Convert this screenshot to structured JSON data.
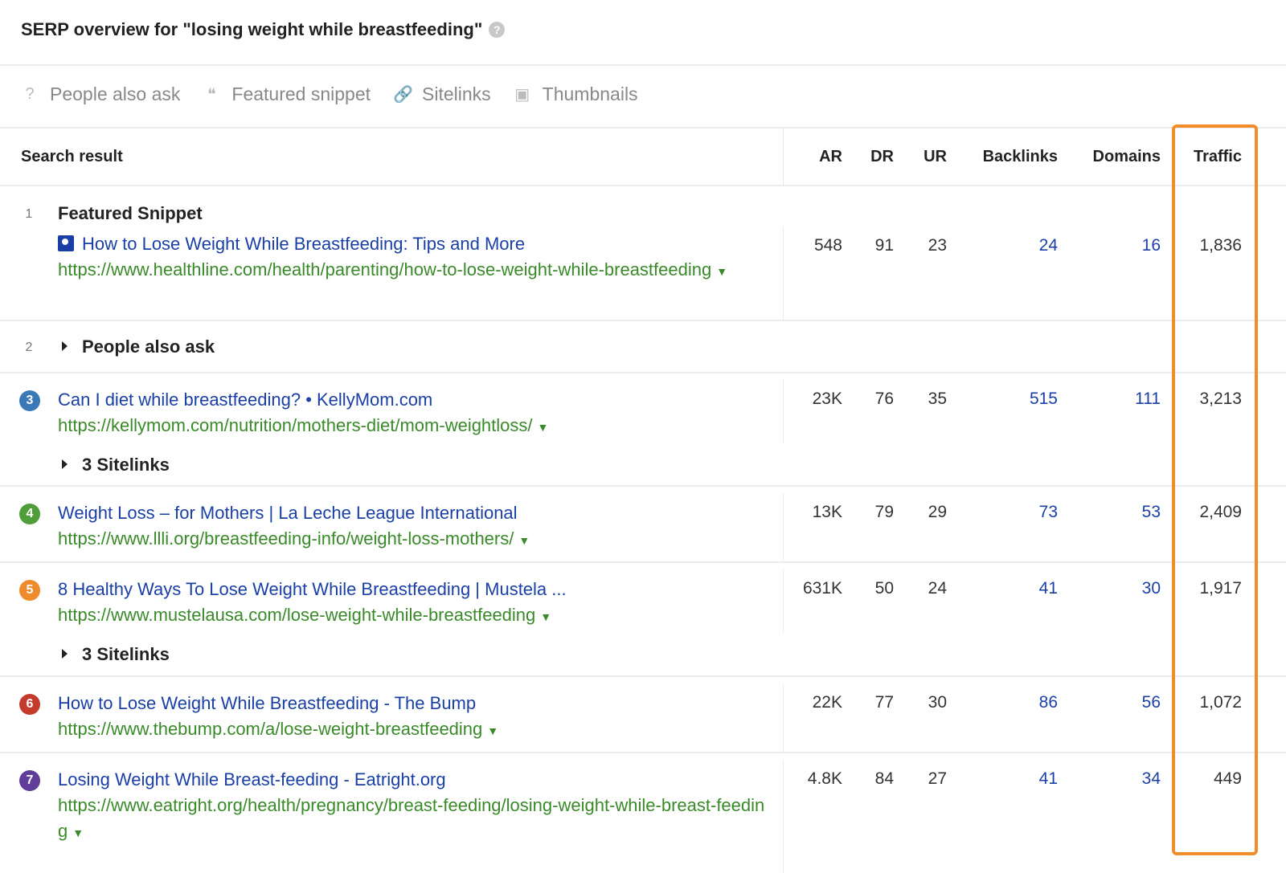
{
  "header": {
    "title": "SERP overview for \"losing weight while breastfeeding\"",
    "help_icon": "?"
  },
  "features": [
    {
      "icon": "question-bubble-icon",
      "glyph": "?",
      "label": "People also ask"
    },
    {
      "icon": "quote-icon",
      "glyph": "❝",
      "label": "Featured snippet"
    },
    {
      "icon": "link-icon",
      "glyph": "🔗",
      "label": "Sitelinks"
    },
    {
      "icon": "image-icon",
      "glyph": "▣",
      "label": "Thumbnails"
    }
  ],
  "columns": {
    "search_result": "Search result",
    "ar": "AR",
    "dr": "DR",
    "ur": "UR",
    "backlinks": "Backlinks",
    "domains": "Domains",
    "traffic": "Traffic"
  },
  "highlight_color": "#f28d2c",
  "rows": [
    {
      "rank": "1",
      "label": "Featured Snippet",
      "title": "How to Lose Weight While Breastfeeding: Tips and More",
      "url": "https://www.healthline.com/health/parenting/how-to-lose-weight-while-breastfeeding",
      "ar": "548",
      "dr": "91",
      "ur": "23",
      "backlinks": "24",
      "domains": "16",
      "traffic": "1,836"
    },
    {
      "rank": "2",
      "label": "People also ask"
    },
    {
      "rank": "3",
      "color": "#3b78b8",
      "title": "Can I diet while breastfeeding? • KellyMom.com",
      "url": "https://kellymom.com/nutrition/mothers-diet/mom-weightloss/",
      "ar": "23K",
      "dr": "76",
      "ur": "35",
      "backlinks": "515",
      "domains": "111",
      "traffic": "3,213",
      "sitelinks": "3 Sitelinks"
    },
    {
      "rank": "4",
      "color": "#4f9e3a",
      "title": "Weight Loss – for Mothers | La Leche League International",
      "url": "https://www.llli.org/breastfeeding-info/weight-loss-mothers/",
      "ar": "13K",
      "dr": "79",
      "ur": "29",
      "backlinks": "73",
      "domains": "53",
      "traffic": "2,409"
    },
    {
      "rank": "5",
      "color": "#ef8a2d",
      "title": "8 Healthy Ways To Lose Weight While Breastfeeding | Mustela ...",
      "url": "https://www.mustelausa.com/lose-weight-while-breastfeeding",
      "ar": "631K",
      "dr": "50",
      "ur": "24",
      "backlinks": "41",
      "domains": "30",
      "traffic": "1,917",
      "sitelinks": "3 Sitelinks"
    },
    {
      "rank": "6",
      "color": "#c43b2e",
      "title": "How to Lose Weight While Breastfeeding - The Bump",
      "url": "https://www.thebump.com/a/lose-weight-breastfeeding",
      "ar": "22K",
      "dr": "77",
      "ur": "30",
      "backlinks": "86",
      "domains": "56",
      "traffic": "1,072"
    },
    {
      "rank": "7",
      "color": "#5f3d98",
      "title": "Losing Weight While Breast-feeding - Eatright.org",
      "url": "https://www.eatright.org/health/pregnancy/breast-feeding/losing-weight-while-breast-feeding",
      "ar": "4.8K",
      "dr": "84",
      "ur": "27",
      "backlinks": "41",
      "domains": "34",
      "traffic": "449"
    }
  ]
}
